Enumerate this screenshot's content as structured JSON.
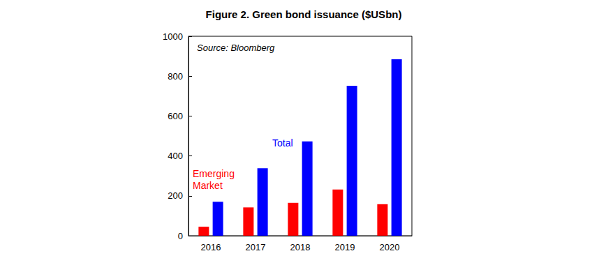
{
  "chart_data": {
    "type": "bar",
    "title": "Figure 2. Green bond issuance ($USbn)",
    "annotations": [
      "Source: Bloomberg"
    ],
    "categories": [
      "2016",
      "2017",
      "2018",
      "2019",
      "2020"
    ],
    "series": [
      {
        "name": "Emerging Market",
        "color": "#ff0000",
        "values": [
          45,
          142,
          165,
          232,
          158
        ]
      },
      {
        "name": "Total",
        "color": "#0000ff",
        "values": [
          170,
          338,
          473,
          752,
          885
        ]
      }
    ],
    "ylim": [
      0,
      1000
    ],
    "yticks": [
      0,
      200,
      400,
      600,
      800,
      1000
    ],
    "grid": false
  }
}
